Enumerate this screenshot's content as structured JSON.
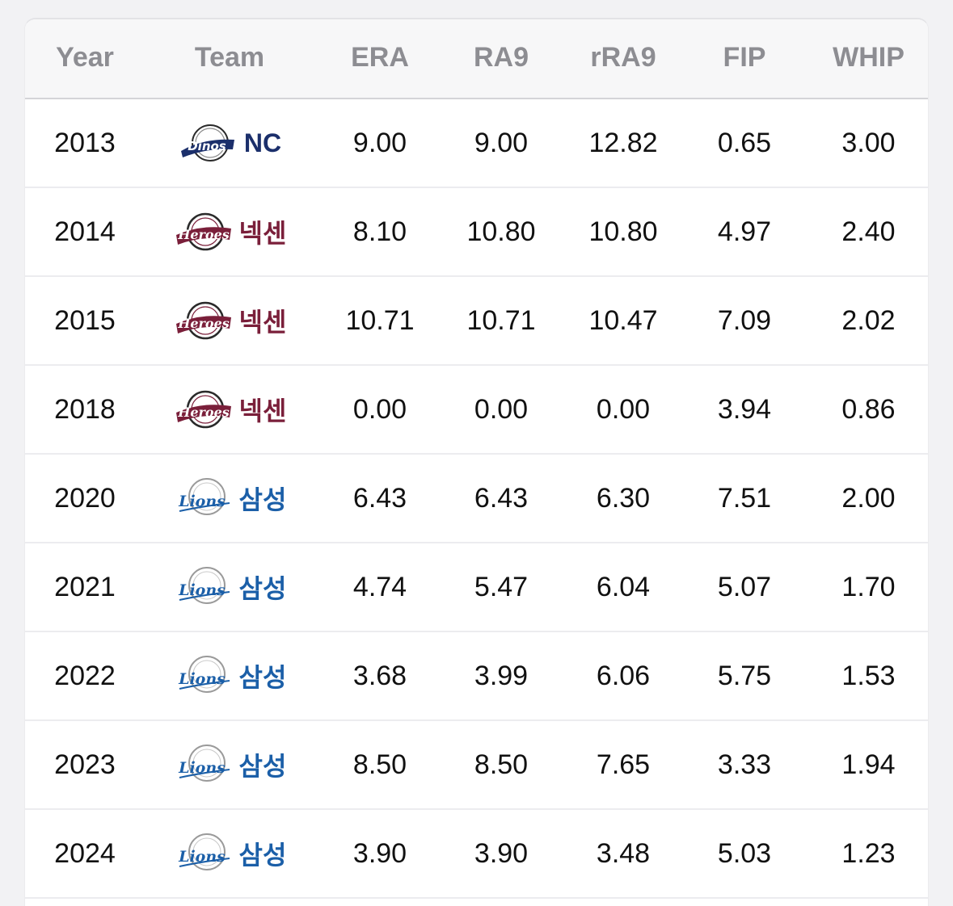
{
  "table": {
    "headers": {
      "year": "Year",
      "team": "Team",
      "era": "ERA",
      "ra9": "RA9",
      "rra9": "rRA9",
      "fip": "FIP",
      "whip": "WHIP"
    },
    "rows": [
      {
        "year": "2013",
        "team": "NC",
        "team_logo": "dinos-logo-icon",
        "team_color": "#1b2f6b",
        "era": "9.00",
        "ra9": "9.00",
        "rra9": "12.82",
        "fip": "0.65",
        "whip": "3.00"
      },
      {
        "year": "2014",
        "team": "넥센",
        "team_logo": "heroes-logo-icon",
        "team_color": "#7a1f3a",
        "era": "8.10",
        "ra9": "10.80",
        "rra9": "10.80",
        "fip": "4.97",
        "whip": "2.40"
      },
      {
        "year": "2015",
        "team": "넥센",
        "team_logo": "heroes-logo-icon",
        "team_color": "#7a1f3a",
        "era": "10.71",
        "ra9": "10.71",
        "rra9": "10.47",
        "fip": "7.09",
        "whip": "2.02"
      },
      {
        "year": "2018",
        "team": "넥센",
        "team_logo": "heroes-logo-icon",
        "team_color": "#7a1f3a",
        "era": "0.00",
        "ra9": "0.00",
        "rra9": "0.00",
        "fip": "3.94",
        "whip": "0.86"
      },
      {
        "year": "2020",
        "team": "삼성",
        "team_logo": "lions-logo-icon",
        "team_color": "#1b5fa8",
        "era": "6.43",
        "ra9": "6.43",
        "rra9": "6.30",
        "fip": "7.51",
        "whip": "2.00"
      },
      {
        "year": "2021",
        "team": "삼성",
        "team_logo": "lions-logo-icon",
        "team_color": "#1b5fa8",
        "era": "4.74",
        "ra9": "5.47",
        "rra9": "6.04",
        "fip": "5.07",
        "whip": "1.70"
      },
      {
        "year": "2022",
        "team": "삼성",
        "team_logo": "lions-logo-icon",
        "team_color": "#1b5fa8",
        "era": "3.68",
        "ra9": "3.99",
        "rra9": "6.06",
        "fip": "5.75",
        "whip": "1.53"
      },
      {
        "year": "2023",
        "team": "삼성",
        "team_logo": "lions-logo-icon",
        "team_color": "#1b5fa8",
        "era": "8.50",
        "ra9": "8.50",
        "rra9": "7.65",
        "fip": "3.33",
        "whip": "1.94"
      },
      {
        "year": "2024",
        "team": "삼성",
        "team_logo": "lions-logo-icon",
        "team_color": "#1b5fa8",
        "era": "3.90",
        "ra9": "3.90",
        "rra9": "3.48",
        "fip": "5.03",
        "whip": "1.23"
      }
    ]
  }
}
